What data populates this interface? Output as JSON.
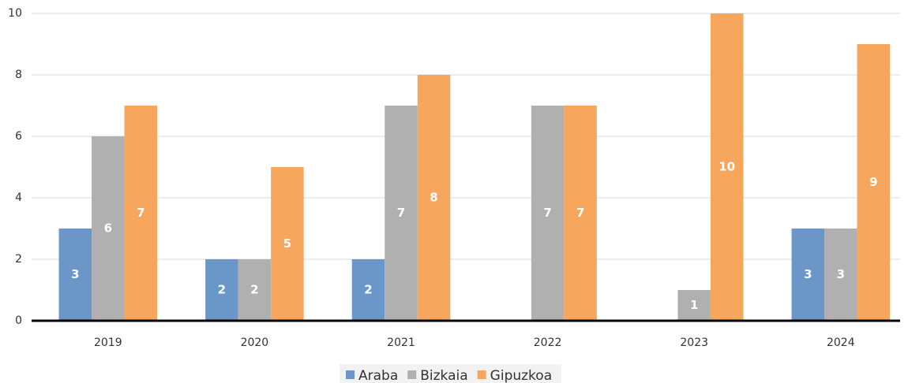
{
  "chart_data": {
    "type": "bar",
    "categories": [
      "2019",
      "2020",
      "2021",
      "2022",
      "2023",
      "2024"
    ],
    "series": [
      {
        "name": "Araba",
        "color": "#6a96c8",
        "values": [
          3,
          2,
          2,
          null,
          null,
          3
        ]
      },
      {
        "name": "Bizkaia",
        "color": "#b0b0b0",
        "values": [
          6,
          2,
          7,
          7,
          1,
          3
        ]
      },
      {
        "name": "Gipuzkoa",
        "color": "#f7a65e",
        "values": [
          7,
          5,
          8,
          7,
          10,
          9
        ]
      }
    ],
    "ylim": [
      0,
      10
    ],
    "yticks": [
      0,
      2,
      4,
      6,
      8,
      10
    ],
    "grid": true,
    "legend": "bottom"
  }
}
